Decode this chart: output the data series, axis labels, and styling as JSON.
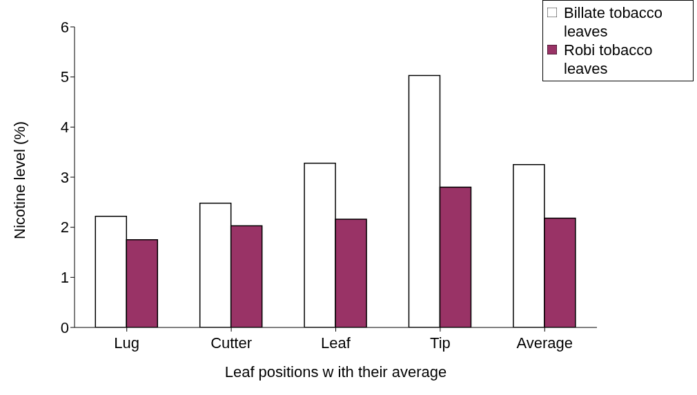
{
  "chart_data": {
    "type": "bar",
    "xlabel": "Leaf positions w ith their average",
    "ylabel": "Nicotine level (%)",
    "categories": [
      "Lug",
      "Cutter",
      "Leaf",
      "Tip",
      "Average"
    ],
    "series": [
      {
        "name": "Billate tobacco leaves",
        "color": "#ffffff",
        "values": [
          2.22,
          2.48,
          3.28,
          5.03,
          3.25
        ]
      },
      {
        "name": "Robi tobacco leaves",
        "color": "#993366",
        "values": [
          1.75,
          2.03,
          2.16,
          2.8,
          2.18
        ]
      }
    ],
    "ylim": [
      0,
      6
    ],
    "yticks": [
      0,
      1,
      2,
      3,
      4,
      5,
      6
    ],
    "grid": false,
    "legend": "top right"
  }
}
